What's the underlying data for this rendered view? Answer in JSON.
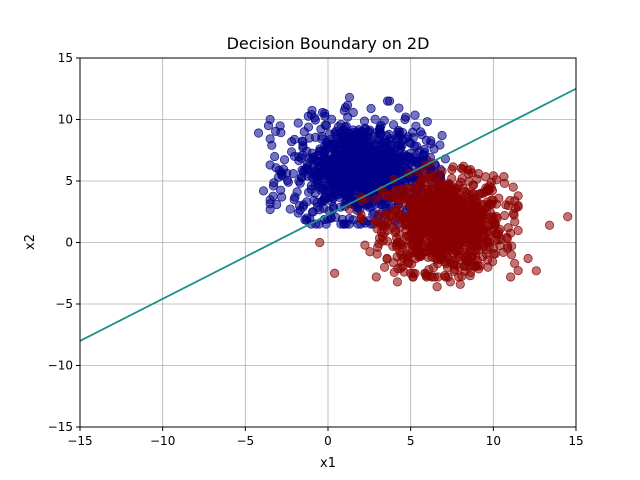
{
  "chart_data": {
    "type": "scatter",
    "title": "Decision Boundary on 2D",
    "xlabel": "x1",
    "ylabel": "x2",
    "xlim": [
      -15,
      15
    ],
    "ylim": [
      -15,
      15
    ],
    "xticks": [
      -15,
      -10,
      -5,
      0,
      5,
      10,
      15
    ],
    "yticks": [
      -15,
      -10,
      -5,
      0,
      5,
      10,
      15
    ],
    "xtick_labels": [
      "−15",
      "−10",
      "−5",
      "0",
      "5",
      "10",
      "15"
    ],
    "ytick_labels": [
      "−15",
      "−10",
      "−5",
      "0",
      "5",
      "10",
      "15"
    ],
    "grid": true,
    "colors": {
      "class_0": "#00008b",
      "class_1": "#8b0000",
      "boundary": "#1f8f8a",
      "grid": "#b0b0b0"
    },
    "point_alpha": 0.55,
    "series": [
      {
        "class": 0,
        "cluster": {
          "center": [
            2,
            6
          ],
          "spread": [
            2,
            1.9
          ],
          "count": 1000
        },
        "points": [
          [
            -4.2,
            8.9
          ],
          [
            -3.6,
            9.5
          ],
          [
            -3.4,
            7.9
          ],
          [
            -3.9,
            4.2
          ],
          [
            -3.3,
            4.6
          ],
          [
            -3.0,
            5.3
          ],
          [
            -2.8,
            3.7
          ],
          [
            -2.4,
            4.9
          ],
          [
            -2.1,
            5.6
          ],
          [
            -2.2,
            8.2
          ],
          [
            -1.8,
            2.4
          ],
          [
            -1.5,
            2.9
          ],
          [
            -1.3,
            1.8
          ],
          [
            -1.1,
            1.9
          ],
          [
            -0.9,
            2.5
          ],
          [
            1.8,
            2.8
          ],
          [
            3.4,
            2.1
          ],
          [
            -1.0,
            10.4
          ],
          [
            -0.2,
            10.5
          ],
          [
            1.3,
            11.8
          ],
          [
            3.6,
            11.5
          ],
          [
            4.7,
            10.2
          ],
          [
            5.6,
            9.0
          ],
          [
            6.9,
            8.7
          ],
          [
            7.1,
            6.8
          ],
          [
            6.5,
            6.3
          ],
          [
            6.2,
            6.9
          ],
          [
            -0.5,
            4.5
          ],
          [
            0.3,
            3.6
          ],
          [
            1.0,
            6.5
          ],
          [
            2.2,
            7.7
          ],
          [
            3.1,
            5.9
          ],
          [
            4.3,
            4.7
          ],
          [
            5.1,
            3.6
          ],
          [
            1.5,
            4.2
          ]
        ]
      },
      {
        "class": 1,
        "cluster": {
          "center": [
            7,
            1.5
          ],
          "spread": [
            1.8,
            1.9
          ],
          "count": 1000
        },
        "points": [
          [
            -0.5,
            0.0
          ],
          [
            0.4,
            -2.5
          ],
          [
            1.3,
            2.7
          ],
          [
            4.2,
            -3.2
          ],
          [
            5.0,
            -2.5
          ],
          [
            6.1,
            -2.2
          ],
          [
            6.6,
            -3.6
          ],
          [
            7.4,
            -3.2
          ],
          [
            8.0,
            -3.4
          ],
          [
            8.6,
            -2.7
          ],
          [
            8.9,
            -1.9
          ],
          [
            9.2,
            -1.9
          ],
          [
            10.6,
            -0.8
          ],
          [
            11.1,
            -1.0
          ],
          [
            12.1,
            -1.3
          ],
          [
            12.6,
            -2.3
          ],
          [
            13.4,
            1.4
          ],
          [
            14.5,
            2.1
          ],
          [
            11.5,
            2.9
          ],
          [
            11.3,
            3.4
          ],
          [
            11.2,
            4.5
          ],
          [
            10.2,
            5.1
          ],
          [
            9.1,
            5.6
          ],
          [
            8.2,
            6.2
          ],
          [
            3.0,
            1.7
          ],
          [
            3.6,
            1.0
          ],
          [
            8.8,
            2.4
          ],
          [
            9.8,
            0.7
          ],
          [
            10.3,
            0.2
          ],
          [
            10.9,
            1.2
          ]
        ]
      }
    ],
    "boundary_line": {
      "x": [
        -15,
        15
      ],
      "y": [
        -8.0,
        12.5
      ]
    }
  }
}
